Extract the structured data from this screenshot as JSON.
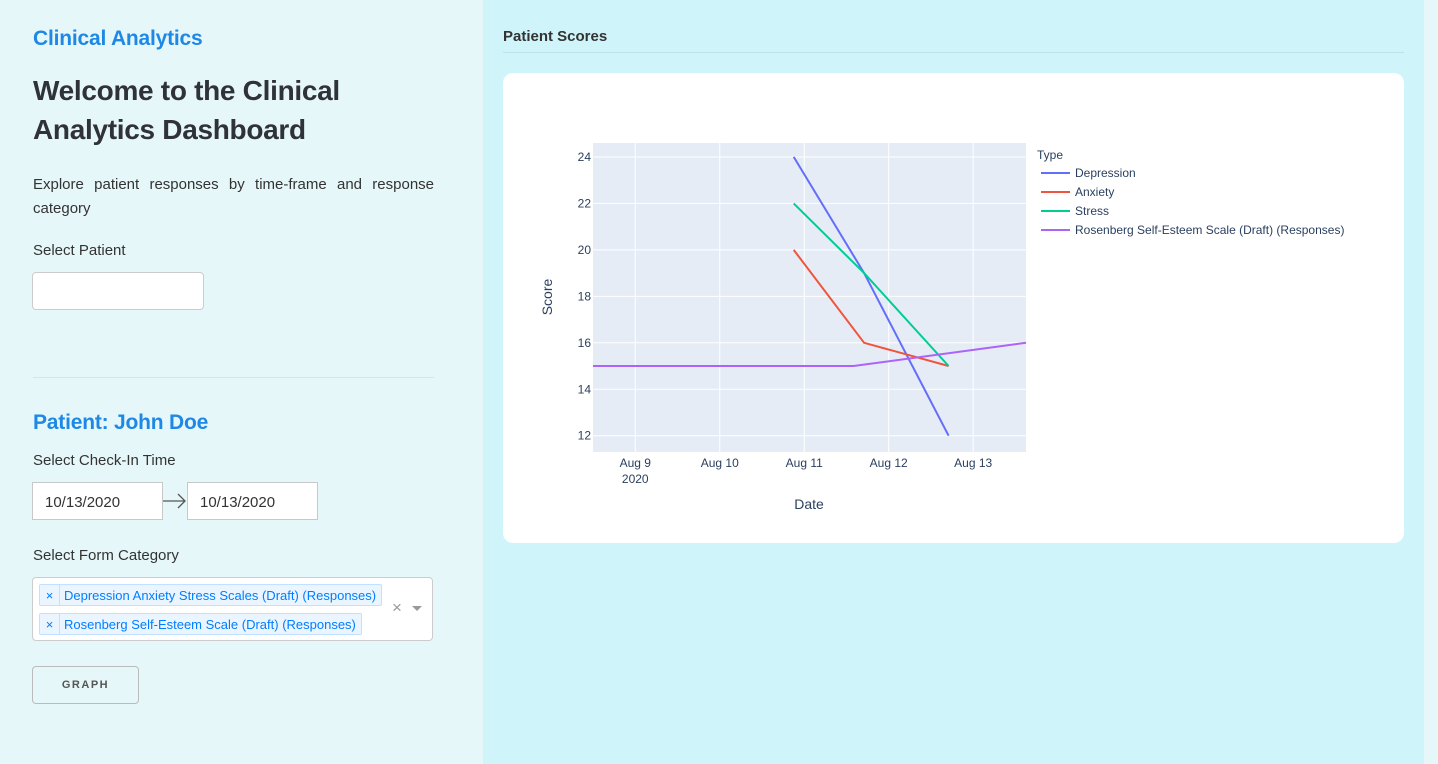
{
  "sidebar": {
    "brand": "Clinical Analytics",
    "welcome_title": "Welcome to the Clinical Analytics Dashboard",
    "intro": "Explore patient responses by time-frame and response category",
    "select_patient_label": "Select Patient",
    "patient_value": "",
    "patient_heading": "Patient: John Doe",
    "checkin_label": "Select Check-In Time",
    "start_date": "10/13/2020",
    "end_date": "10/13/2020",
    "form_category_label": "Select Form Category",
    "selected_categories": [
      "Depression Anxiety Stress Scales (Draft) (Responses)",
      "Rosenberg Self-Esteem Scale (Draft) (Responses)"
    ],
    "graph_button": "GRAPH"
  },
  "main": {
    "section_title": "Patient Scores"
  },
  "chart_data": {
    "type": "line",
    "title": "",
    "xlabel": "Date",
    "ylabel": "Score",
    "x_tick_labels": [
      "Aug 9\n2020",
      "Aug 10",
      "Aug 11",
      "Aug 12",
      "Aug 13"
    ],
    "x_ticks": [
      "2020-08-09",
      "2020-08-10",
      "2020-08-11",
      "2020-08-12",
      "2020-08-13"
    ],
    "xlim": [
      "2020-08-08 12:00",
      "2020-08-13 15:00"
    ],
    "y_ticks": [
      12,
      14,
      16,
      18,
      20,
      22,
      24
    ],
    "ylim": [
      11.3,
      24.6
    ],
    "grid": true,
    "legend_title": "Type",
    "legend_placement": "right",
    "series": [
      {
        "name": "Depression",
        "color": "#636efa",
        "x": [
          "2020-08-10 21:00",
          "2020-08-11 17:00",
          "2020-08-12 17:00"
        ],
        "y": [
          24,
          19,
          12
        ]
      },
      {
        "name": "Anxiety",
        "color": "#ef553b",
        "x": [
          "2020-08-10 21:00",
          "2020-08-11 17:00",
          "2020-08-12 17:00"
        ],
        "y": [
          20,
          16,
          15
        ]
      },
      {
        "name": "Stress",
        "color": "#00cc96",
        "x": [
          "2020-08-10 21:00",
          "2020-08-11 17:00",
          "2020-08-12 17:00"
        ],
        "y": [
          22,
          19,
          15
        ]
      },
      {
        "name": "Rosenberg Self-Esteem Scale (Draft) (Responses)",
        "color": "#ab63fa",
        "x": [
          "2020-08-08 12:00",
          "2020-08-11 14:00",
          "2020-08-13 15:00"
        ],
        "y": [
          15,
          15,
          16
        ]
      }
    ]
  }
}
